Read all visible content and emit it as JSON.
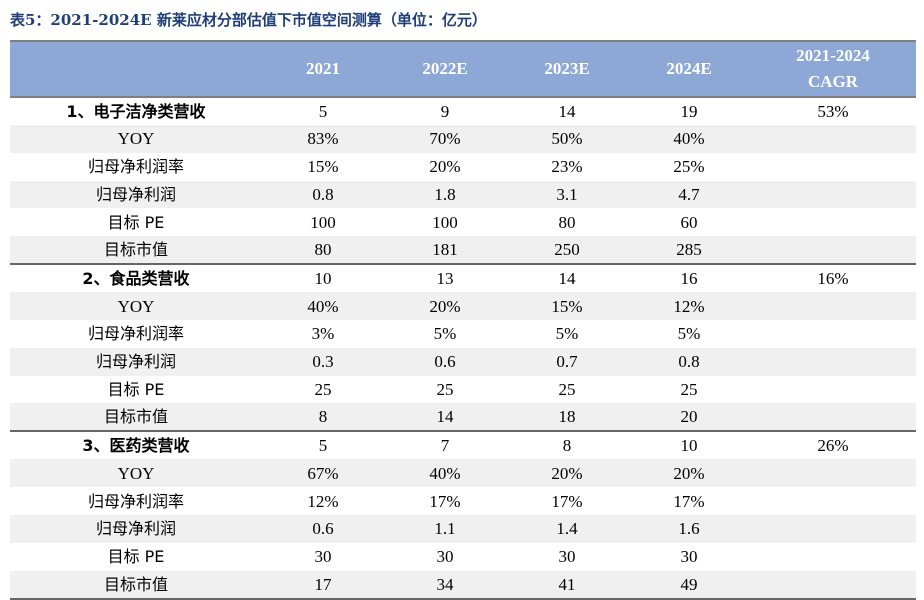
{
  "caption": "表5：2021-2024E 新莱应材分部估值下市值空间测算（单位：亿元）",
  "headers": [
    "",
    "2021",
    "2022E",
    "2023E",
    "2024E",
    "2021-2024\nCAGR"
  ],
  "groups": [
    {
      "rows": [
        [
          "1、电子洁净类营收",
          "5",
          "9",
          "14",
          "19",
          "53%"
        ],
        [
          "YOY",
          "83%",
          "70%",
          "50%",
          "40%",
          ""
        ],
        [
          "归母净利润率",
          "15%",
          "20%",
          "23%",
          "25%",
          ""
        ],
        [
          "归母净利润",
          "0.8",
          "1.8",
          "3.1",
          "4.7",
          ""
        ],
        [
          "目标 PE",
          "100",
          "100",
          "80",
          "60",
          ""
        ],
        [
          "目标市值",
          "80",
          "181",
          "250",
          "285",
          ""
        ]
      ]
    },
    {
      "rows": [
        [
          "2、食品类营收",
          "10",
          "13",
          "14",
          "16",
          "16%"
        ],
        [
          "YOY",
          "40%",
          "20%",
          "15%",
          "12%",
          ""
        ],
        [
          "归母净利润率",
          "3%",
          "5%",
          "5%",
          "5%",
          ""
        ],
        [
          "归母净利润",
          "0.3",
          "0.6",
          "0.7",
          "0.8",
          ""
        ],
        [
          "目标 PE",
          "25",
          "25",
          "25",
          "25",
          ""
        ],
        [
          "目标市值",
          "8",
          "14",
          "18",
          "20",
          ""
        ]
      ]
    },
    {
      "rows": [
        [
          "3、医药类营收",
          "5",
          "7",
          "8",
          "10",
          "26%"
        ],
        [
          "YOY",
          "67%",
          "40%",
          "20%",
          "20%",
          ""
        ],
        [
          "归母净利润率",
          "12%",
          "17%",
          "17%",
          "17%",
          ""
        ],
        [
          "归母净利润",
          "0.6",
          "1.1",
          "1.4",
          "1.6",
          ""
        ],
        [
          "目标 PE",
          "30",
          "30",
          "30",
          "30",
          ""
        ],
        [
          "目标市值",
          "17",
          "34",
          "41",
          "49",
          ""
        ]
      ]
    }
  ]
}
